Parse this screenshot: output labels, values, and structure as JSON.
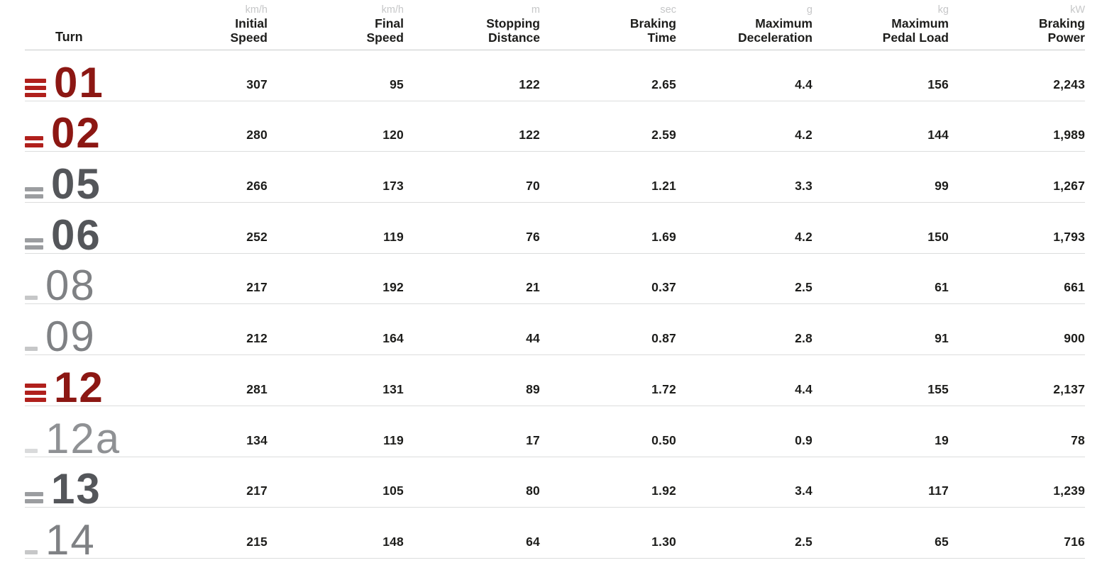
{
  "chart_data": {
    "type": "table",
    "turn_column_header": "Turn",
    "columns": [
      {
        "unit": "km/h",
        "line1": "Initial",
        "line2": "Speed"
      },
      {
        "unit": "km/h",
        "line1": "Final",
        "line2": "Speed"
      },
      {
        "unit": "m",
        "line1": "Stopping",
        "line2": "Distance"
      },
      {
        "unit": "sec",
        "line1": "Braking",
        "line2": "Time"
      },
      {
        "unit": "g",
        "line1": "Maximum",
        "line2": "Deceleration"
      },
      {
        "unit": "kg",
        "line1": "Maximum",
        "line2": "Pedal Load"
      },
      {
        "unit": "kW",
        "line1": "Braking",
        "line2": "Power"
      }
    ],
    "rows": [
      {
        "turn": "01",
        "severity": "heavy",
        "intensity_bars": 3,
        "values": [
          "307",
          "95",
          "122",
          "2.65",
          "4.4",
          "156",
          "2,243"
        ]
      },
      {
        "turn": "02",
        "severity": "heavy",
        "intensity_bars": 2,
        "values": [
          "280",
          "120",
          "122",
          "2.59",
          "4.2",
          "144",
          "1,989"
        ]
      },
      {
        "turn": "05",
        "severity": "medium",
        "intensity_bars": 2,
        "values": [
          "266",
          "173",
          "70",
          "1.21",
          "3.3",
          "99",
          "1,267"
        ]
      },
      {
        "turn": "06",
        "severity": "medium",
        "intensity_bars": 2,
        "values": [
          "252",
          "119",
          "76",
          "1.69",
          "4.2",
          "150",
          "1,793"
        ]
      },
      {
        "turn": "08",
        "severity": "light",
        "intensity_bars": 1,
        "values": [
          "217",
          "192",
          "21",
          "0.37",
          "2.5",
          "61",
          "661"
        ]
      },
      {
        "turn": "09",
        "severity": "light",
        "intensity_bars": 1,
        "values": [
          "212",
          "164",
          "44",
          "0.87",
          "2.8",
          "91",
          "900"
        ]
      },
      {
        "turn": "12",
        "severity": "heavy",
        "intensity_bars": 3,
        "values": [
          "281",
          "131",
          "89",
          "1.72",
          "4.4",
          "155",
          "2,137"
        ]
      },
      {
        "turn": "12a",
        "severity": "minimal",
        "intensity_bars": 1,
        "values": [
          "134",
          "119",
          "17",
          "0.50",
          "0.9",
          "19",
          "78"
        ]
      },
      {
        "turn": "13",
        "severity": "medium",
        "intensity_bars": 2,
        "values": [
          "217",
          "105",
          "80",
          "1.92",
          "3.4",
          "117",
          "1,239"
        ]
      },
      {
        "turn": "14",
        "severity": "light",
        "intensity_bars": 1,
        "values": [
          "215",
          "148",
          "64",
          "1.30",
          "2.5",
          "65",
          "716"
        ]
      }
    ],
    "colors": {
      "heavy_number": "#8c1713",
      "heavy_bar": "#b0201c",
      "medium_number": "#54565a",
      "medium_bar": "#9b9da0",
      "light_number": "#7f8184",
      "light_bar": "#c6c7c8",
      "minimal_number": "#8f9194",
      "minimal_bar": "#d9dadb",
      "value_text": "#1d1d1b",
      "unit_text": "#c6c7c8",
      "divider": "#dcdddd"
    },
    "layout": {
      "grid": "off",
      "legend": "none"
    }
  }
}
